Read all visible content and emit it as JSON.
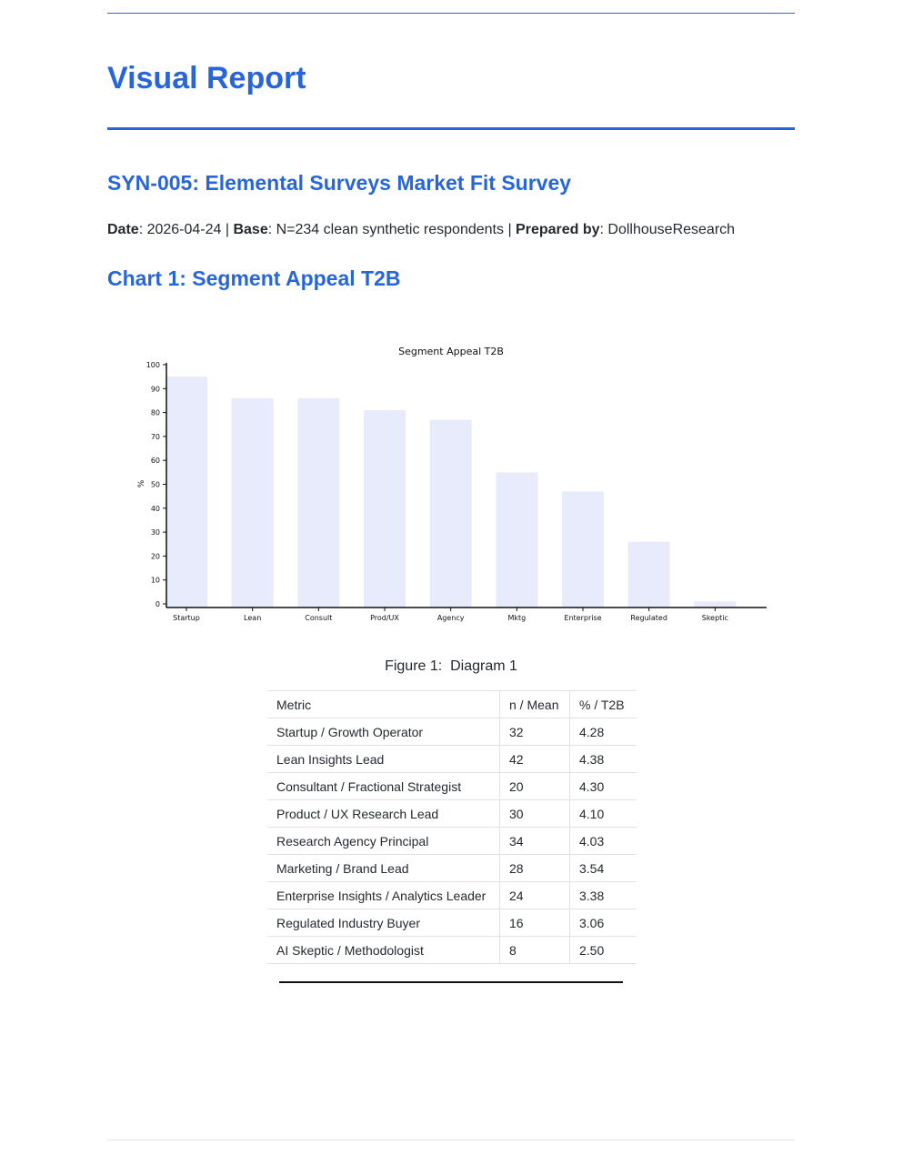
{
  "report": {
    "title": "Visual Report",
    "section_title": "SYN-005: Elemental Surveys Market Fit Survey",
    "meta": {
      "date_label": "Date",
      "date_value": ": 2026-04-24 | ",
      "base_label": "Base",
      "base_value": ": N=234 clean synthetic respondents | ",
      "prepared_label": "Prepared by",
      "prepared_value": ": DollhouseResearch"
    },
    "chart_heading": "Chart 1: Segment Appeal T2B",
    "figure_caption": "Figure 1:  Diagram 1"
  },
  "chart_data": {
    "type": "bar",
    "title": "Segment Appeal T2B",
    "xlabel": "",
    "ylabel": "%",
    "ylim": [
      0,
      100
    ],
    "yticks": [
      0,
      10,
      20,
      30,
      40,
      50,
      60,
      70,
      80,
      90,
      100
    ],
    "categories": [
      "Startup",
      "Lean",
      "Consult",
      "Prod/UX",
      "Agency",
      "Mktg",
      "Enterprise",
      "Regulated",
      "Skeptic"
    ],
    "values": [
      95,
      86,
      86,
      81,
      77,
      55,
      47,
      26,
      1
    ],
    "bar_color": "#e8ebfb",
    "grid": false
  },
  "table": {
    "headers": [
      "Metric",
      "n / Mean",
      "% / T2B"
    ],
    "rows": [
      [
        "Startup / Growth Operator",
        "32",
        "4.28"
      ],
      [
        "Lean Insights Lead",
        "42",
        "4.38"
      ],
      [
        "Consultant / Fractional Strategist",
        "20",
        "4.30"
      ],
      [
        "Product / UX Research Lead",
        "30",
        "4.10"
      ],
      [
        "Research Agency Principal",
        "34",
        "4.03"
      ],
      [
        "Marketing / Brand Lead",
        "28",
        "3.54"
      ],
      [
        "Enterprise Insights / Analytics Leader",
        "24",
        "3.38"
      ],
      [
        "Regulated Industry Buyer",
        "16",
        "3.06"
      ],
      [
        "AI Skeptic / Methodologist",
        "8",
        "2.50"
      ]
    ]
  }
}
